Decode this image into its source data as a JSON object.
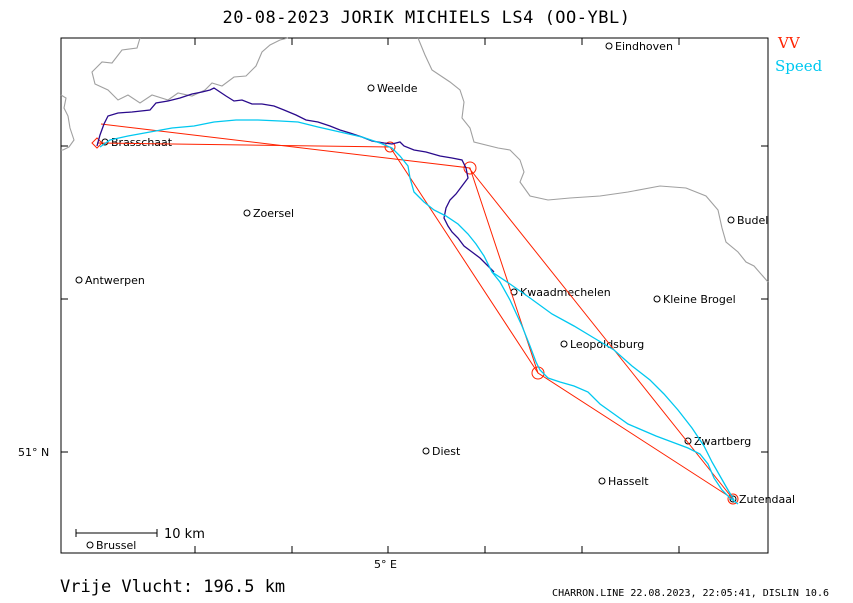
{
  "title": "20-08-2023   JORIK MICHIELS   LS4 (OO-YBL)",
  "legend": {
    "vv": "VV",
    "vv_color": "#ff2200",
    "speed": "Speed",
    "speed_color": "#00c8f0"
  },
  "axes": {
    "lat_label": "51° N",
    "lon_label": "5° E"
  },
  "scale": {
    "label": "10 km"
  },
  "places": [
    {
      "name": "Eindhoven"
    },
    {
      "name": "Weelde"
    },
    {
      "name": "Brasschaat"
    },
    {
      "name": "Zoersel"
    },
    {
      "name": "Budel"
    },
    {
      "name": "Antwerpen"
    },
    {
      "name": "Kwaadmechelen"
    },
    {
      "name": "Kleine Brogel"
    },
    {
      "name": "Leopoldsburg"
    },
    {
      "name": "Zwartberg"
    },
    {
      "name": "Diest"
    },
    {
      "name": "Hasselt"
    },
    {
      "name": "Zutendaal"
    },
    {
      "name": "Brussel"
    }
  ],
  "footer": {
    "distance": "Vrije Vlucht:  196.5 km",
    "credit": "CHARRON.LINE 22.08.2023, 22:05:41, DISLIN 10.6"
  },
  "colors": {
    "border_line": "#a0a0a0",
    "track_vario": "#2a0a8c",
    "track_speed": "#00c8f0",
    "task": "#ff2200"
  }
}
